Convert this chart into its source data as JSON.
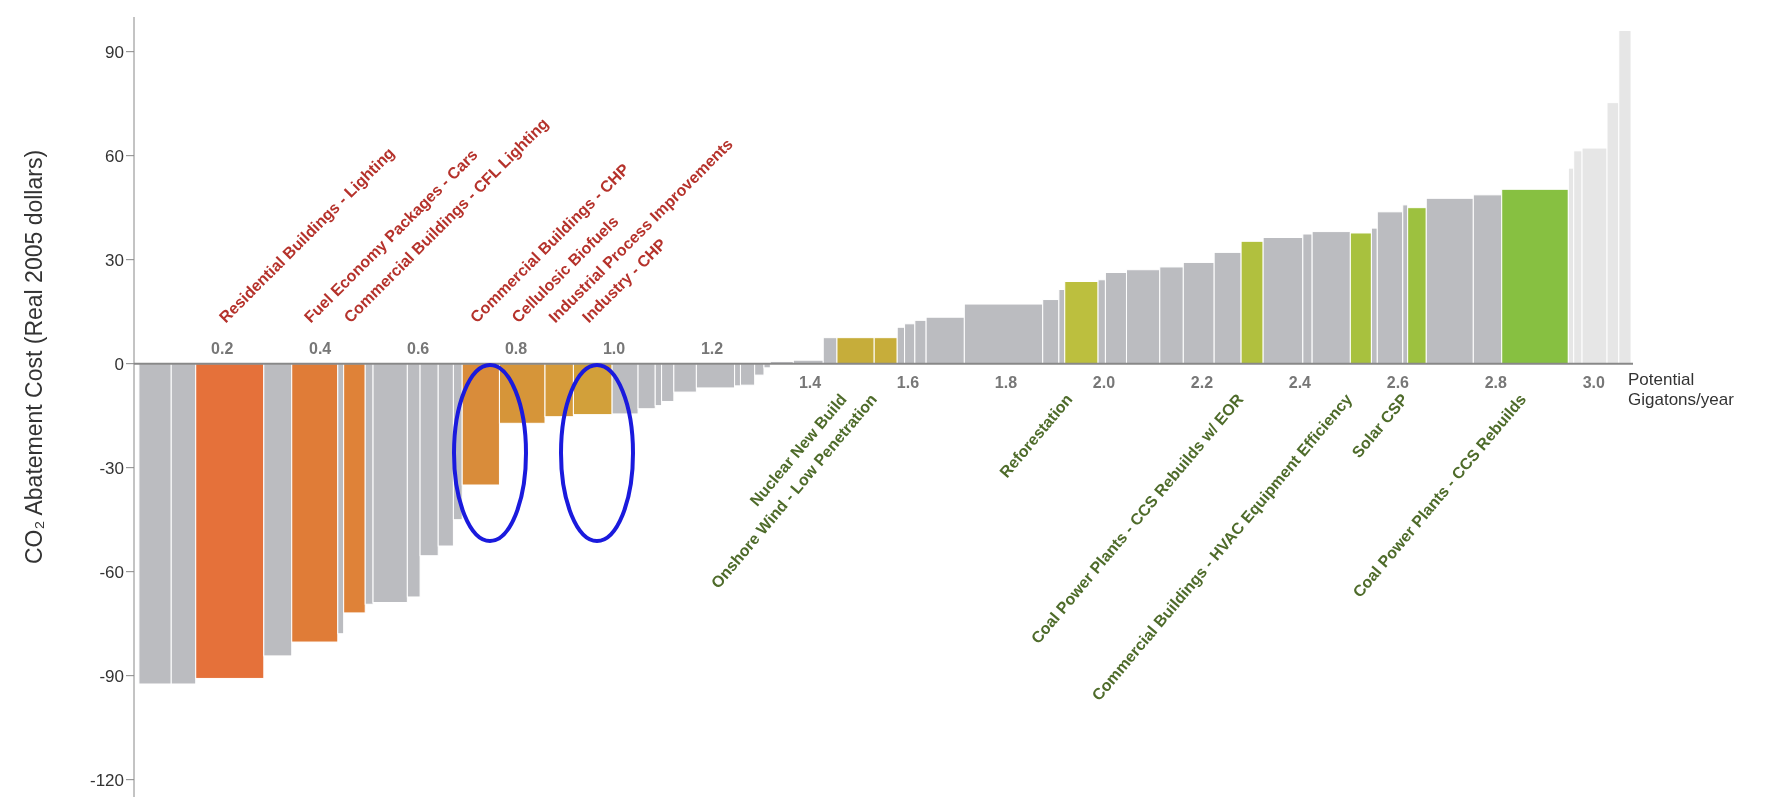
{
  "chart_data": {
    "type": "histogram",
    "ylabel": "CO₂ Abatement Cost (Real 2005 dollars)",
    "xlabel": "Potential Gigatons/year",
    "bins": [
      0.03,
      0.096,
      0.146,
      0.285,
      0.342,
      0.436,
      0.448,
      0.492,
      0.508,
      0.578,
      0.604,
      0.641,
      0.672,
      0.69,
      0.766,
      0.859,
      0.917,
      0.996,
      1.049,
      1.084,
      1.097,
      1.122,
      1.168,
      1.246,
      1.258,
      1.287,
      1.306,
      1.319,
      1.366,
      1.427,
      1.455,
      1.531,
      1.578,
      1.593,
      1.614,
      1.637,
      1.715,
      1.875,
      1.908,
      1.92,
      1.988,
      2.003,
      2.046,
      2.114,
      2.162,
      2.225,
      2.28,
      2.325,
      2.406,
      2.425,
      2.503,
      2.546,
      2.558,
      2.61,
      2.62,
      2.658,
      2.754,
      2.812,
      2.948,
      2.959,
      2.976,
      3.027,
      3.051,
      3.076
    ],
    "values": [
      -92.4,
      -92.4,
      -90.8,
      -84.3,
      -80.3,
      -77.9,
      -71.9,
      -69.4,
      -68.9,
      -67.3,
      -55.4,
      -52.6,
      -45,
      -35,
      -17.2,
      -15.3,
      -14.7,
      -14.5,
      -13,
      -12.1,
      -10.9,
      -8.2,
      -7,
      -6.4,
      -6.2,
      -3.3,
      -1.2,
      0.6,
      1,
      7.5,
      7.5,
      7.5,
      10.5,
      11.5,
      12.5,
      13.4,
      17.2,
      18.5,
      21.4,
      23.7,
      24.2,
      26.3,
      27.1,
      27.9,
      29.2,
      32.1,
      35.3,
      36.4,
      37.4,
      38.1,
      37.7,
      39.1,
      43.8,
      45.8,
      45,
      47.7,
      48.7,
      50.3,
      56.4,
      61.4,
      62.2,
      75.3,
      96.1
    ],
    "colors": [
      "#bbbcc0",
      "#bbbcc0",
      "#e5713a",
      "#bbbcc0",
      "#e07c37",
      "#bbbcc0",
      "#df8238",
      "#bbbcc0",
      "#bbbcc0",
      "#bbbcc0",
      "#bbbcc0",
      "#bbbcc0",
      "#bbbcc0",
      "#d98c3a",
      "#d69539",
      "#d69b3a",
      "#d2a03a",
      "#bbbcc0",
      "#bbbcc0",
      "#bbbcc0",
      "#bbbcc0",
      "#bbbcc0",
      "#bbbcc0",
      "#bbbcc0",
      "#bbbcc0",
      "#bbbcc0",
      "#bbbcc0",
      "#bbbcc0",
      "#bbbcc0",
      "#bbbcc0",
      "#c6ad3a",
      "#c7ad3a",
      "#bbbcc0",
      "#bbbcc0",
      "#bbbcc0",
      "#bbbcc0",
      "#bbbcc0",
      "#bbbcc0",
      "#bbbcc0",
      "#bcbf3e",
      "#bbbcc0",
      "#bbbcc0",
      "#bbbcc0",
      "#bbbcc0",
      "#bbbcc0",
      "#bbbcc0",
      "#b1c03e",
      "#bbbcc0",
      "#bbbcc0",
      "#bbbcc0",
      "#a8c13e",
      "#bbbcc0",
      "#bbbcc0",
      "#bbbcc0",
      "#9dc13f",
      "#bbbcc0",
      "#bbbcc0",
      "#87c041",
      "#e6e6e6",
      "#e6e6e6",
      "#e6e6e6",
      "#e6e6e6",
      "#e6e6e6"
    ],
    "xlim": [
      0.02,
      3.08
    ],
    "xticks": [
      1.4,
      1.6,
      1.8,
      {
        "value": 2,
        "label": "2.0"
      },
      2.2,
      2.4,
      2.6,
      2.8,
      {
        "value": 3,
        "label": "3.0"
      }
    ],
    "x2lim": [
      0.02,
      3.08
    ],
    "x2ticks": [
      0.2,
      0.4,
      0.6,
      0.8,
      {
        "value": 1,
        "label": "1.0"
      },
      1.2
    ],
    "ylim": [
      -125,
      100
    ],
    "yticks": [
      -120,
      -90,
      -60,
      -30,
      0,
      30,
      60,
      90
    ],
    "grid": false,
    "legend": false,
    "annotations": [
      "Residential Buildings - Lighting",
      "Fuel Economy Packages - Cars",
      "Commercial Buildings - CFL Lighting",
      "Commercial Buildings - CHP",
      "Cellulosic Biofuels",
      "Industrial Process Improvements",
      "Industry - CHP",
      "Nuclear New Build",
      "Onshore Wind - Low Penetration",
      "Reforestation",
      "Coal Power Plants - CCS Rebuilds w/ EOR",
      "Commercial Buildings - HVAC Equipment Efficiency",
      "Solar CSP",
      "Coal Power Plants - CCS Rebuilds"
    ]
  }
}
